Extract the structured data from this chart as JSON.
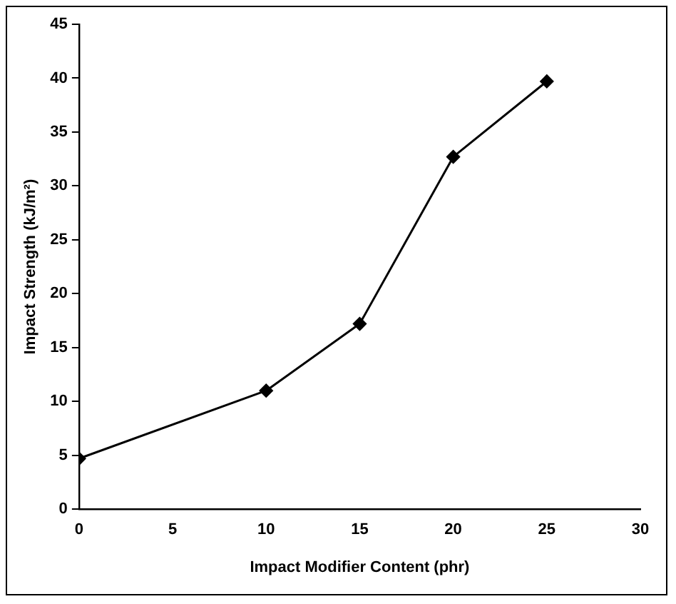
{
  "chart_data": {
    "type": "line",
    "xlabel": "Impact Modifier Content (phr)",
    "ylabel": "Impact Strength (kJ/m²)",
    "x": [
      0,
      10,
      15,
      20,
      25
    ],
    "series": [
      {
        "color": "#000000",
        "values": [
          4.7,
          11,
          17.2,
          32.7,
          39.7
        ]
      }
    ],
    "xlim": [
      0,
      30
    ],
    "xticks": [
      0,
      5,
      10,
      15,
      20,
      25,
      30
    ],
    "ylim": [
      0,
      45
    ],
    "yticks": [
      0,
      5,
      10,
      15,
      20,
      25,
      30,
      35,
      40,
      45
    ],
    "grid": false,
    "legend": false,
    "marker": "diamond",
    "line_style": "solid"
  }
}
